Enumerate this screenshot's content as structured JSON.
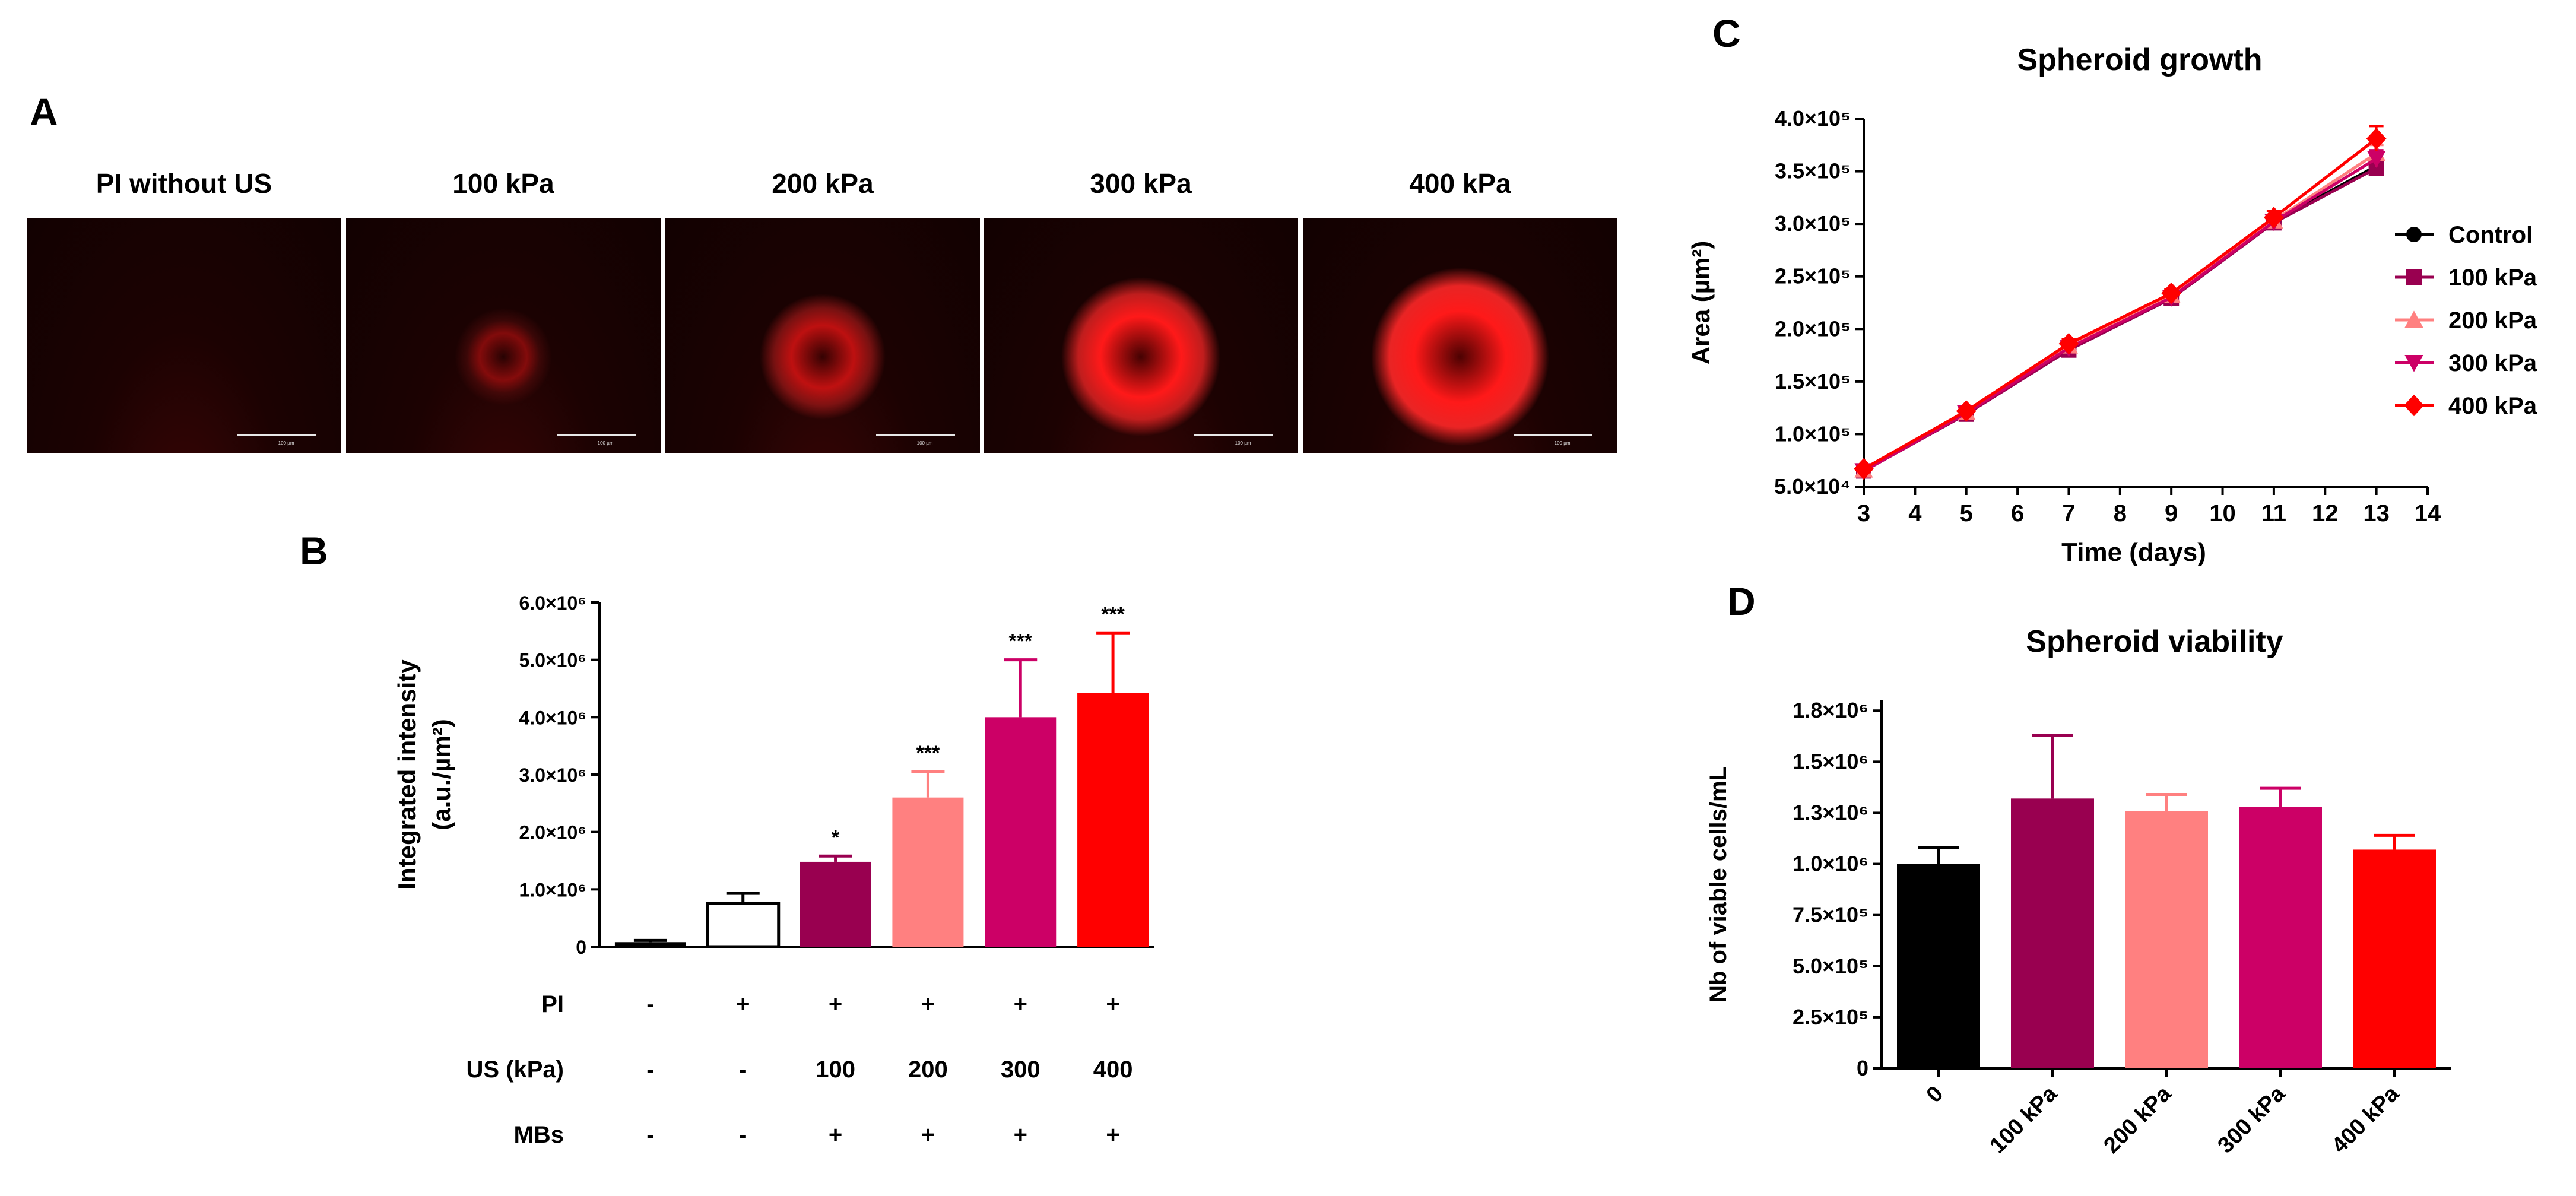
{
  "panel_labels": {
    "a": "A",
    "b": "B",
    "c": "C",
    "d": "D"
  },
  "panel_a": {
    "images": [
      {
        "title": "PI without US",
        "fluorescence": 0.0
      },
      {
        "title": "100 kPa",
        "fluorescence": 0.15
      },
      {
        "title": "200 kPa",
        "fluorescence": 0.45
      },
      {
        "title": "300 kPa",
        "fluorescence": 0.8
      },
      {
        "title": "400 kPa",
        "fluorescence": 1.0
      }
    ],
    "scale_label": "100 µm"
  },
  "chart_data": [
    {
      "id": "B",
      "type": "bar",
      "title": "",
      "ylabel_line1": "Integrated intensity",
      "ylabel_line2": "(a.u./µm²)",
      "ylim": [
        0,
        6000000
      ],
      "yticks": [
        {
          "v": 0,
          "label": "0"
        },
        {
          "v": 1000000,
          "label": "1.0×10⁶"
        },
        {
          "v": 2000000,
          "label": "2.0×10⁶"
        },
        {
          "v": 3000000,
          "label": "3.0×10⁶"
        },
        {
          "v": 4000000,
          "label": "4.0×10⁶"
        },
        {
          "v": 5000000,
          "label": "5.0×10⁶"
        },
        {
          "v": 6000000,
          "label": "6.0×10⁶"
        }
      ],
      "bars": [
        {
          "value": 80000,
          "error": 30000,
          "color": "#000000",
          "filled": true,
          "sig": ""
        },
        {
          "value": 750000,
          "error": 180000,
          "color": "#000000",
          "filled": false,
          "sig": ""
        },
        {
          "value": 1480000,
          "error": 100000,
          "color": "#990050",
          "filled": true,
          "sig": "*"
        },
        {
          "value": 2600000,
          "error": 450000,
          "color": "#ff8080",
          "filled": true,
          "sig": "***"
        },
        {
          "value": 4000000,
          "error": 1000000,
          "color": "#cc0066",
          "filled": true,
          "sig": "***"
        },
        {
          "value": 4420000,
          "error": 1050000,
          "color": "#ff0000",
          "filled": true,
          "sig": "***"
        }
      ],
      "conditions": [
        {
          "label": "PI",
          "values": [
            "-",
            "+",
            "+",
            "+",
            "+",
            "+"
          ]
        },
        {
          "label": "US (kPa)",
          "values": [
            "-",
            "-",
            "100",
            "200",
            "300",
            "400"
          ]
        },
        {
          "label": "MBs",
          "values": [
            "-",
            "-",
            "+",
            "+",
            "+",
            "+"
          ]
        }
      ]
    },
    {
      "id": "C",
      "type": "line",
      "title": "Spheroid growth",
      "xlabel": "Time (days)",
      "ylabel": "Area (µm²)",
      "xlim": [
        3,
        14
      ],
      "ylim": [
        50000,
        400000
      ],
      "xticks": [
        3,
        4,
        5,
        6,
        7,
        8,
        9,
        10,
        11,
        12,
        13,
        14
      ],
      "yticks": [
        {
          "v": 50000,
          "label": "5.0×10⁴"
        },
        {
          "v": 100000,
          "label": "1.0×10⁵"
        },
        {
          "v": 150000,
          "label": "1.5×10⁵"
        },
        {
          "v": 200000,
          "label": "2.0×10⁵"
        },
        {
          "v": 250000,
          "label": "2.5×10⁵"
        },
        {
          "v": 300000,
          "label": "3.0×10⁵"
        },
        {
          "v": 350000,
          "label": "3.5×10⁵"
        },
        {
          "v": 400000,
          "label": "4.0×10⁵"
        }
      ],
      "x": [
        3,
        5,
        7,
        9,
        11,
        13
      ],
      "series": [
        {
          "name": "Control",
          "color": "#000000",
          "marker": "circle",
          "values": [
            65000,
            120000,
            183000,
            231000,
            302000,
            355000
          ],
          "errors": [
            2000,
            3000,
            4000,
            4000,
            5000,
            6000
          ]
        },
        {
          "name": "100 kPa",
          "color": "#990050",
          "marker": "square",
          "values": [
            65000,
            119000,
            180000,
            229000,
            301000,
            353000
          ],
          "errors": [
            2000,
            3000,
            4000,
            4000,
            5000,
            6000
          ]
        },
        {
          "name": "200 kPa",
          "color": "#ff8080",
          "marker": "triangle-up",
          "values": [
            66000,
            121000,
            184000,
            232000,
            303000,
            367000
          ],
          "errors": [
            2000,
            3000,
            4000,
            4000,
            5000,
            8000
          ]
        },
        {
          "name": "300 kPa",
          "color": "#cc0066",
          "marker": "triangle-down",
          "values": [
            65000,
            120000,
            182000,
            230000,
            302000,
            362000
          ],
          "errors": [
            2000,
            3000,
            4000,
            4000,
            5000,
            8000
          ]
        },
        {
          "name": "400 kPa",
          "color": "#ff0000",
          "marker": "diamond",
          "values": [
            67000,
            122000,
            186000,
            234000,
            306000,
            381000
          ],
          "errors": [
            2000,
            3000,
            4000,
            4000,
            6000,
            12000
          ]
        }
      ]
    },
    {
      "id": "D",
      "type": "bar",
      "title": "Spheroid viability",
      "ylabel": "Nb of viable cells/mL",
      "ylim": [
        0,
        1800000
      ],
      "yticks": [
        {
          "v": 0,
          "label": "0"
        },
        {
          "v": 250000,
          "label": "2.5×10⁵"
        },
        {
          "v": 500000,
          "label": "5.0×10⁵"
        },
        {
          "v": 750000,
          "label": "7.5×10⁵"
        },
        {
          "v": 1000000,
          "label": "1.0×10⁶"
        },
        {
          "v": 1250000,
          "label": "1.3×10⁶"
        },
        {
          "v": 1500000,
          "label": "1.5×10⁶"
        },
        {
          "v": 1750000,
          "label": "1.8×10⁶"
        }
      ],
      "categories": [
        "0",
        "100 kPa",
        "200 kPa",
        "300 kPa",
        "400 kPa"
      ],
      "values": [
        1000000,
        1320000,
        1260000,
        1280000,
        1070000
      ],
      "errors": [
        80000,
        310000,
        80000,
        90000,
        70000
      ],
      "colors": [
        "#000000",
        "#990050",
        "#ff8080",
        "#cc0066",
        "#ff0000"
      ]
    }
  ]
}
